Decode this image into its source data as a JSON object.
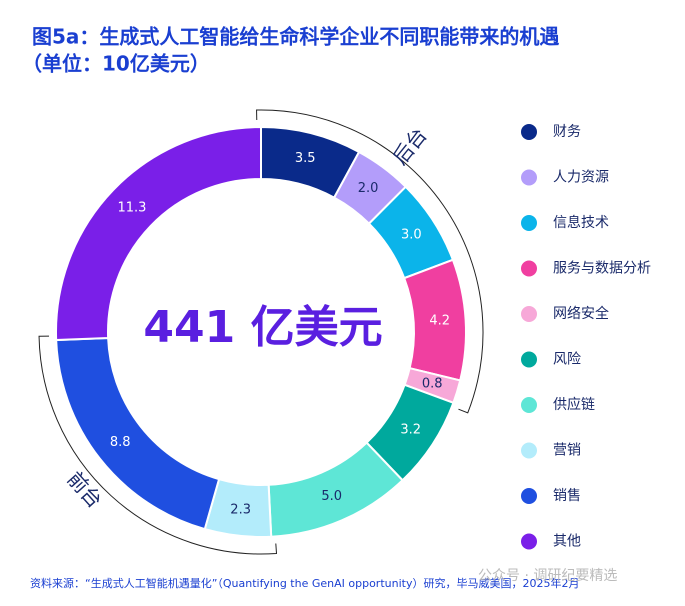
{
  "chart_data": {
    "type": "donut",
    "title": "图5a：生成式人工智能给生命科学企业不同职能带来的机遇",
    "subtitle": "（单位：10亿美元）",
    "center_label": "441 亿美元",
    "group_labels": [
      "后台",
      "前台"
    ],
    "categories": [
      "财务",
      "人力资源",
      "信息技术",
      "服务与数据分析",
      "网络安全",
      "风险",
      "供应链",
      "营销",
      "销售",
      "其他"
    ],
    "values": [
      3.5,
      2.0,
      3.0,
      4.2,
      0.8,
      3.2,
      5.0,
      2.3,
      8.8,
      11.3
    ],
    "value_labels": [
      "3.5",
      "2.0",
      "3.0",
      "4.2",
      "0.8",
      "3.2",
      "5.0",
      "2.3",
      "8.8",
      "11.3"
    ],
    "colors": [
      "#0a2a8a",
      "#b39dfa",
      "#0bb4ea",
      "#f03fa0",
      "#f7a8d8",
      "#00a99d",
      "#5ee6d6",
      "#b3ecfb",
      "#1f4fe0",
      "#7a1fe8"
    ],
    "legend": "right",
    "source": "资料来源：“生成式人工智能机遇量化”（Quantifying the GenAI opportunity）研究，毕马威美国，2025年2月",
    "watermark": "公众号 · 调研纪要精选"
  }
}
